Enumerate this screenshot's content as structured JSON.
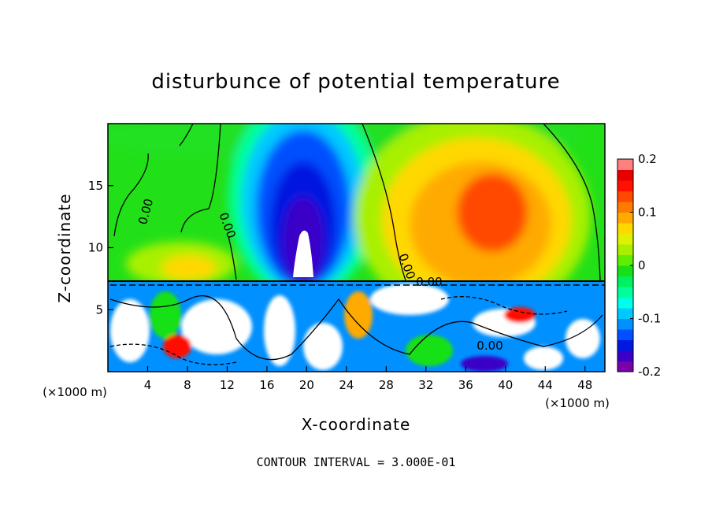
{
  "chart_data": {
    "type": "heatmap",
    "title": "disturbunce of potential temperature",
    "xlabel": "X-coordinate",
    "ylabel": "Z-coordinate",
    "x_unit": "(×1000 m)",
    "xlim": [
      0,
      50
    ],
    "ylim": [
      0,
      20
    ],
    "x_ticks": [
      "4",
      "8",
      "12",
      "16",
      "20",
      "24",
      "28",
      "32",
      "36",
      "40",
      "44",
      "48"
    ],
    "y_ticks": [
      "5",
      "10",
      "15"
    ],
    "colorbar": {
      "range": [
        -0.2,
        0.2
      ],
      "tick_labels": [
        "0.2",
        "0.1",
        "0",
        "-0.1",
        "-0.2"
      ],
      "colors": [
        "#7a00a8",
        "#3a00c8",
        "#0018e0",
        "#0050ff",
        "#0090ff",
        "#00c8ff",
        "#00ffe8",
        "#00ff9a",
        "#00f060",
        "#18e018",
        "#60ee00",
        "#a8f000",
        "#e0f000",
        "#ffd800",
        "#ffaa00",
        "#ff7a00",
        "#ff4800",
        "#ff1000",
        "#e80000",
        "#ff8080"
      ]
    },
    "contour_labels": [
      "0.00",
      "0.00",
      "0.00",
      "0.00",
      "0.00"
    ],
    "annotation": "CONTOUR INTERVAL = 3.000E-01"
  }
}
